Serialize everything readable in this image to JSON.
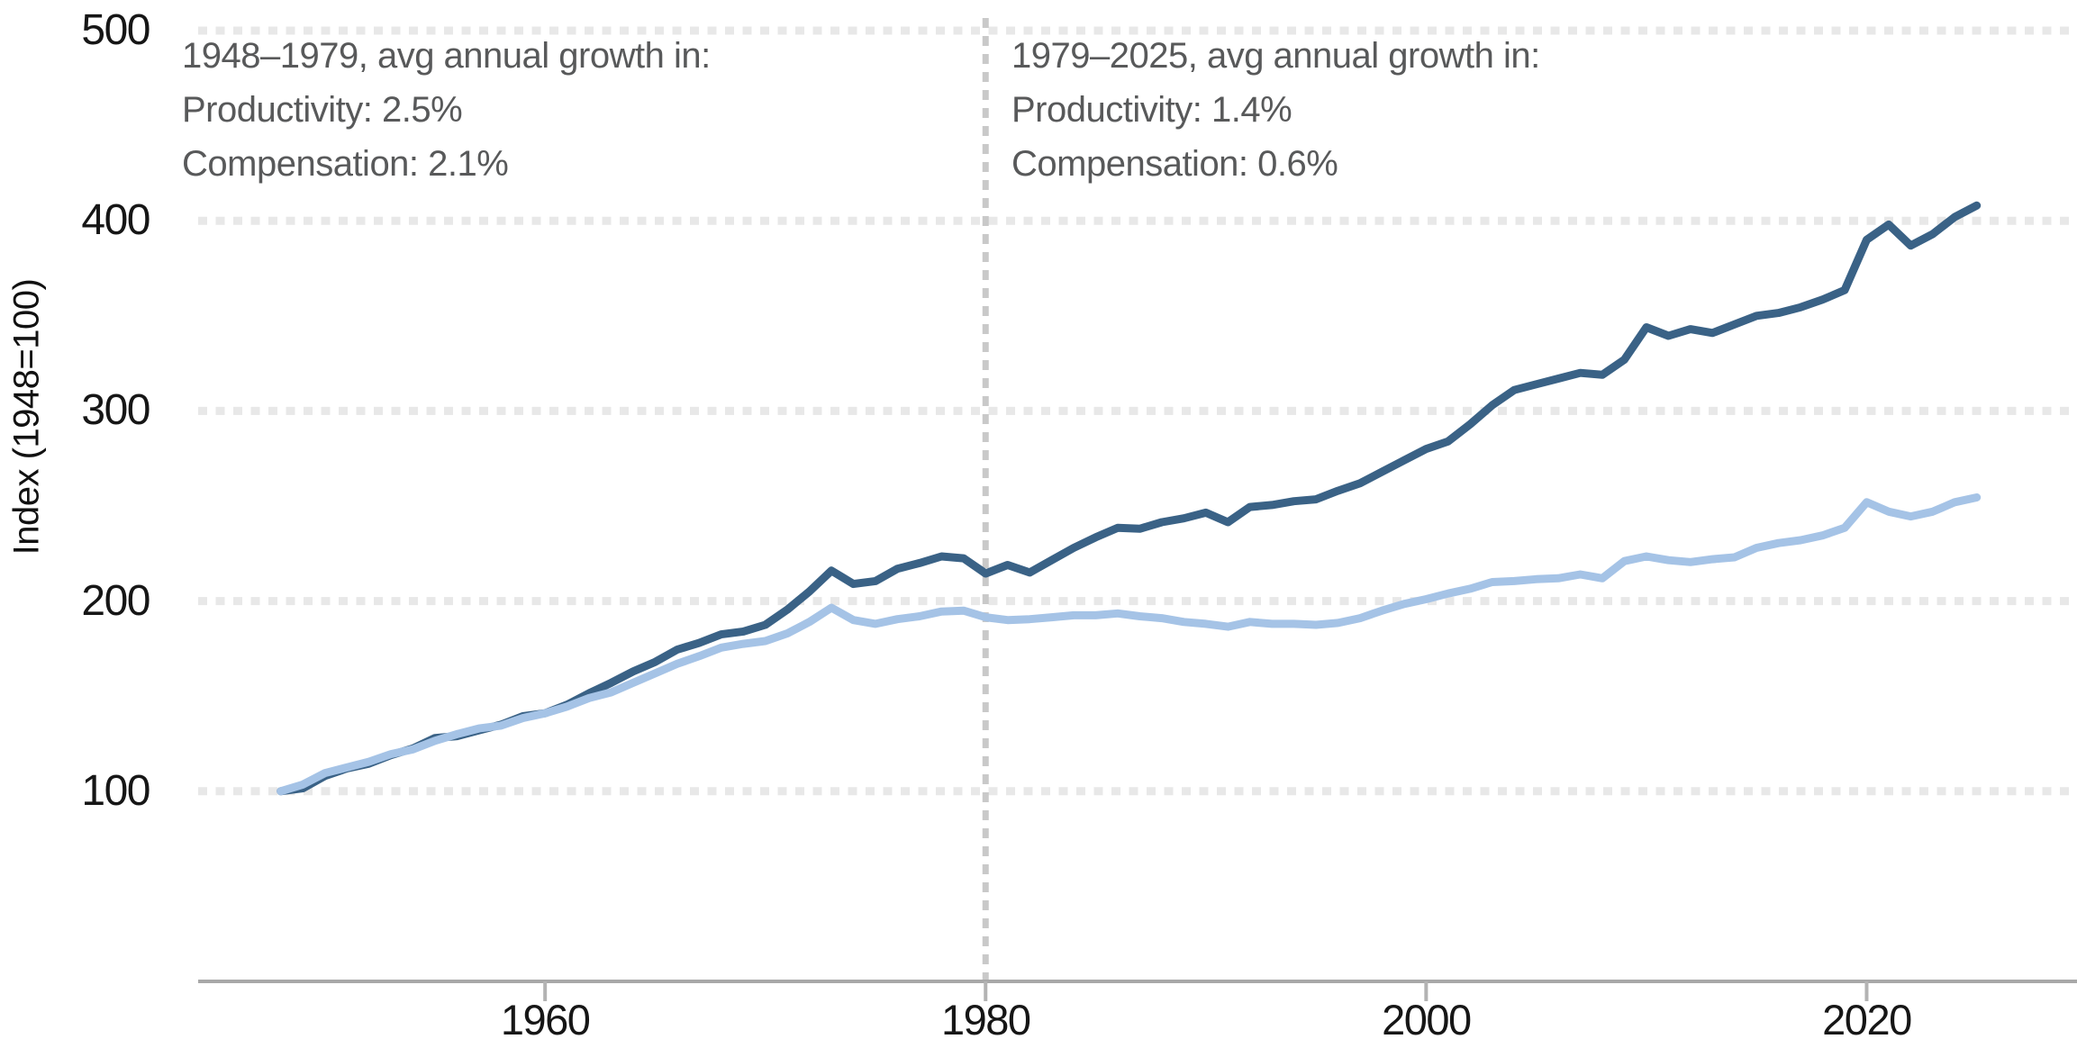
{
  "chart_data": {
    "type": "line",
    "ylabel": "Index (1948=100)",
    "x": [
      1948,
      1949,
      1950,
      1951,
      1952,
      1953,
      1954,
      1955,
      1956,
      1957,
      1958,
      1959,
      1960,
      1961,
      1962,
      1963,
      1964,
      1965,
      1966,
      1967,
      1968,
      1969,
      1970,
      1971,
      1972,
      1973,
      1974,
      1975,
      1976,
      1977,
      1978,
      1979,
      1980,
      1981,
      1982,
      1983,
      1984,
      1985,
      1986,
      1987,
      1988,
      1989,
      1990,
      1991,
      1992,
      1993,
      1994,
      1995,
      1996,
      1997,
      1998,
      1999,
      2000,
      2001,
      2002,
      2003,
      2004,
      2005,
      2006,
      2007,
      2008,
      2009,
      2010,
      2011,
      2012,
      2013,
      2014,
      2015,
      2016,
      2017,
      2018,
      2019,
      2020,
      2021,
      2022,
      2023,
      2024,
      2025
    ],
    "series": [
      {
        "name": "Productivity",
        "color": "#3a6286",
        "values": [
          100,
          101.5,
          108,
          112,
          114.5,
          119,
          122.5,
          128,
          129,
          132,
          135,
          139.5,
          141,
          145.5,
          151.5,
          157,
          163,
          168,
          174.5,
          178,
          182.5,
          184,
          187.5,
          195.5,
          205,
          216,
          209,
          210.5,
          217,
          220,
          223.5,
          222.5,
          214.5,
          219,
          215,
          221.5,
          228,
          233.5,
          238.5,
          238,
          241.5,
          243.5,
          246.5,
          241.5,
          249.5,
          250.5,
          252.5,
          253.5,
          258,
          262,
          268,
          274,
          280,
          284,
          293,
          303,
          311,
          314,
          317,
          320,
          319,
          327,
          344,
          339.5,
          343,
          341,
          345.5,
          350,
          351.5,
          354.5,
          358.5,
          363.5,
          390,
          398,
          387,
          393,
          402,
          408
        ]
      },
      {
        "name": "Compensation",
        "color": "#a5c3e6",
        "values": [
          100,
          103.5,
          109.5,
          112.5,
          115.5,
          119.5,
          122,
          126.5,
          130,
          133,
          134.5,
          138.5,
          141,
          144.5,
          149,
          152,
          157,
          162,
          167,
          171,
          175.5,
          177.5,
          179,
          183,
          189,
          196.5,
          190,
          188,
          190.5,
          192,
          194.5,
          195,
          191.5,
          190,
          190.5,
          191.5,
          192.5,
          192.5,
          193.5,
          192,
          191,
          189,
          188,
          186.5,
          189,
          188,
          188,
          187.5,
          188.5,
          191,
          195,
          198.5,
          201,
          204,
          206.5,
          210,
          210.5,
          211.5,
          212,
          214,
          212,
          221,
          223.5,
          221.5,
          220.5,
          222,
          223,
          228,
          230.5,
          232,
          234.5,
          238.5,
          252,
          247,
          244.5,
          247,
          252,
          254.5
        ]
      }
    ],
    "xlim": [
      1944.25,
      2029.55
    ],
    "ylim": [
      0,
      500
    ],
    "x_ticks": [
      1960,
      1980,
      2000,
      2020
    ],
    "y_ticks": [
      100,
      200,
      300,
      400,
      500
    ],
    "grid": "horizontal-dotted",
    "reference_line_x": 1980,
    "legend_position": "none"
  },
  "annotations": {
    "left": {
      "title": "1948–1979, avg annual growth in:",
      "productivity": "Productivity: 2.5%",
      "compensation": "Compensation: 2.1%"
    },
    "right": {
      "title": "1979–2025, avg annual growth in:",
      "productivity": "Productivity: 1.4%",
      "compensation": "Compensation: 0.6%"
    }
  },
  "colors": {
    "productivity_line": "#3a6286",
    "compensation_line": "#a5c3e6",
    "gridline": "#e8e8e8",
    "reference_line": "#c9c9c9",
    "axis_line": "#a8a8a8",
    "axis_tick": "#b3b3b3",
    "tick_text": "#161616",
    "annotation_text": "#58595a"
  }
}
